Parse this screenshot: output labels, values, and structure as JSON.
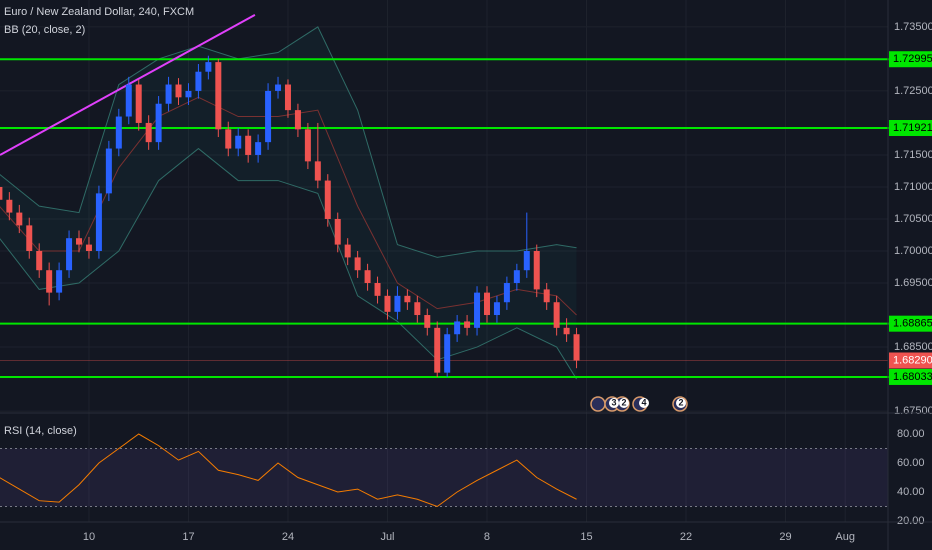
{
  "chart_data": [
    {
      "type": "candlestick",
      "title": "Euro / New Zealand Dollar, 240, FXCM",
      "subtitle": "BB (20, close, 2)",
      "x": [
        -4.5,
        -4,
        -3.5,
        -3,
        -2.5,
        -2,
        -1.5,
        -1,
        -0.5,
        0,
        0.5,
        1,
        1.5,
        2,
        2.5,
        3,
        3.5,
        4,
        4.5,
        5,
        5.5,
        6,
        6.5,
        7,
        7.5,
        8,
        8.5,
        9,
        9.5,
        10,
        10.5,
        11,
        11.5,
        12,
        12.5,
        13,
        13.5,
        14,
        14.5,
        15,
        15.5,
        16,
        16.5,
        17,
        17.5,
        18,
        18.5,
        19,
        19.5,
        20,
        20.5,
        21,
        21.5,
        22,
        22.5,
        23,
        23.5,
        24,
        24.5
      ],
      "open": [
        1.71,
        1.708,
        1.706,
        1.704,
        1.7,
        1.697,
        1.6935,
        1.697,
        1.702,
        1.701,
        1.7,
        1.709,
        1.716,
        1.721,
        1.726,
        1.72,
        1.717,
        1.723,
        1.726,
        1.724,
        1.725,
        1.728,
        1.7295,
        1.719,
        1.716,
        1.718,
        1.715,
        1.717,
        1.725,
        1.726,
        1.722,
        1.719,
        1.714,
        1.711,
        1.705,
        1.701,
        1.699,
        1.697,
        1.695,
        1.693,
        1.6905,
        1.693,
        1.692,
        1.69,
        1.688,
        1.681,
        1.687,
        1.689,
        1.688,
        1.6935,
        1.69,
        1.692,
        1.695,
        1.697,
        1.7,
        1.694,
        1.692,
        1.688,
        1.687
      ],
      "high": [
        1.7112,
        1.7092,
        1.7072,
        1.7052,
        1.7012,
        1.6982,
        1.6982,
        1.7032,
        1.7032,
        1.7022,
        1.7102,
        1.7172,
        1.7222,
        1.7272,
        1.7268,
        1.7212,
        1.7242,
        1.7272,
        1.727,
        1.7262,
        1.7292,
        1.7305,
        1.73,
        1.7202,
        1.7192,
        1.719,
        1.7182,
        1.7262,
        1.7272,
        1.7268,
        1.723,
        1.72,
        1.72,
        1.712,
        1.706,
        1.702,
        1.7,
        1.698,
        1.696,
        1.694,
        1.6945,
        1.694,
        1.693,
        1.691,
        1.689,
        1.688,
        1.69,
        1.69,
        1.6945,
        1.6945,
        1.693,
        1.696,
        1.698,
        1.706,
        1.701,
        1.695,
        1.693,
        1.6895,
        1.688
      ],
      "low": [
        1.7068,
        1.7048,
        1.7028,
        1.6988,
        1.6958,
        1.6915,
        1.6923,
        1.6958,
        1.6998,
        1.6988,
        1.6988,
        1.7078,
        1.7148,
        1.7198,
        1.7188,
        1.7158,
        1.7158,
        1.7218,
        1.7228,
        1.7228,
        1.7238,
        1.7268,
        1.7178,
        1.7148,
        1.7148,
        1.7138,
        1.7138,
        1.7158,
        1.7238,
        1.7208,
        1.7178,
        1.7128,
        1.7098,
        1.7038,
        1.6998,
        1.6978,
        1.6958,
        1.6938,
        1.6918,
        1.6893,
        1.6893,
        1.6908,
        1.6888,
        1.6868,
        1.6803,
        1.6803,
        1.6858,
        1.6868,
        1.6868,
        1.6888,
        1.6888,
        1.6908,
        1.6938,
        1.6958,
        1.6928,
        1.6908,
        1.6868,
        1.6858,
        1.6817
      ],
      "close": [
        1.708,
        1.706,
        1.704,
        1.7,
        1.697,
        1.6935,
        1.697,
        1.702,
        1.701,
        1.7,
        1.709,
        1.716,
        1.721,
        1.726,
        1.72,
        1.717,
        1.723,
        1.726,
        1.724,
        1.725,
        1.728,
        1.7295,
        1.719,
        1.716,
        1.718,
        1.715,
        1.717,
        1.725,
        1.726,
        1.722,
        1.719,
        1.714,
        1.711,
        1.705,
        1.701,
        1.699,
        1.697,
        1.695,
        1.693,
        1.6905,
        1.693,
        1.692,
        1.69,
        1.688,
        1.681,
        1.687,
        1.689,
        1.688,
        1.6935,
        1.69,
        1.692,
        1.695,
        1.697,
        1.7,
        1.694,
        1.692,
        1.688,
        1.687,
        1.6829
      ],
      "up_color": "#2962ff",
      "down_color": "#ef5350",
      "bb": {
        "x": [
          -4.5,
          -2.5,
          -0.5,
          1.5,
          3.5,
          5.5,
          7.5,
          9.5,
          11.5,
          13.5,
          15.5,
          17.5,
          19.5,
          21.5,
          23.5,
          24.5
        ],
        "upper": [
          1.712,
          1.707,
          1.706,
          1.726,
          1.73,
          1.732,
          1.73,
          1.731,
          1.735,
          1.722,
          1.701,
          1.699,
          1.7,
          1.7,
          1.701,
          1.7005
        ],
        "middle": [
          1.707,
          1.7,
          1.7,
          1.713,
          1.721,
          1.724,
          1.721,
          1.721,
          1.722,
          1.707,
          1.695,
          1.691,
          1.692,
          1.694,
          1.693,
          1.69
        ],
        "lower": [
          1.702,
          1.694,
          1.695,
          1.7,
          1.711,
          1.716,
          1.711,
          1.711,
          1.709,
          1.693,
          1.689,
          1.683,
          1.685,
          1.688,
          1.685,
          1.68
        ]
      },
      "levels": [
        1.72995,
        1.71921,
        1.68865,
        1.68033
      ],
      "level_color": "#00e600",
      "trendline": {
        "x": [
          -4.47,
          8.34
        ],
        "values": [
          1.715,
          1.73688
        ],
        "color": "#e040fb"
      },
      "last_price": {
        "value": 1.6829,
        "label": "1.68290"
      },
      "events": [
        "3",
        "2",
        "4",
        "2"
      ],
      "xlim": [
        -4.47,
        40.15
      ],
      "ylim": [
        1.6747,
        1.7392
      ],
      "yticks": [
        {
          "value": 1.735,
          "label": "1.73500"
        },
        {
          "value": 1.725,
          "label": "1.72500"
        },
        {
          "value": 1.715,
          "label": "1.71500"
        },
        {
          "value": 1.71,
          "label": "1.71000"
        },
        {
          "value": 1.705,
          "label": "1.70500"
        },
        {
          "value": 1.7,
          "label": "1.70000"
        },
        {
          "value": 1.695,
          "label": "1.69500"
        },
        {
          "value": 1.685,
          "label": "1.68500"
        },
        {
          "value": 1.675,
          "label": "1.67500"
        }
      ],
      "xticks": [
        {
          "value": 0,
          "label": "10"
        },
        {
          "value": 5,
          "label": "17"
        },
        {
          "value": 10,
          "label": "24"
        },
        {
          "value": 15,
          "label": "Jul"
        },
        {
          "value": 20,
          "label": "8"
        },
        {
          "value": 25,
          "label": "15"
        },
        {
          "value": 30,
          "label": "22"
        },
        {
          "value": 35,
          "label": "29"
        },
        {
          "value": 38,
          "label": "Aug"
        }
      ],
      "grid": true
    },
    {
      "type": "line",
      "title": "RSI (14, close)",
      "x": [
        -4.5,
        -3.5,
        -2.5,
        -1.5,
        -0.5,
        0.5,
        1.5,
        2.5,
        3.5,
        4.5,
        5.5,
        6.5,
        7.5,
        8.5,
        9.5,
        10.5,
        11.5,
        12.5,
        13.5,
        14.5,
        15.5,
        16.5,
        17.5,
        18.5,
        19.5,
        20.5,
        21.5,
        22.5,
        23.5,
        24.5
      ],
      "values": [
        50,
        42,
        34,
        33,
        45,
        60,
        70,
        80,
        72,
        62,
        68,
        55,
        52,
        48,
        60,
        50,
        45,
        40,
        42,
        35,
        38,
        35,
        30,
        40,
        48,
        55,
        62,
        50,
        42,
        35
      ],
      "color": "#f57c00",
      "bands": [
        70,
        30
      ],
      "band_color": "#7e57c2",
      "xlim": [
        -4.47,
        40.15
      ],
      "ylim": [
        19.3,
        94.5
      ],
      "yticks": [
        {
          "value": 80,
          "label": "80.00"
        },
        {
          "value": 60,
          "label": "60.00"
        },
        {
          "value": 40,
          "label": "40.00"
        },
        {
          "value": 20,
          "label": "20.00"
        }
      ]
    }
  ]
}
